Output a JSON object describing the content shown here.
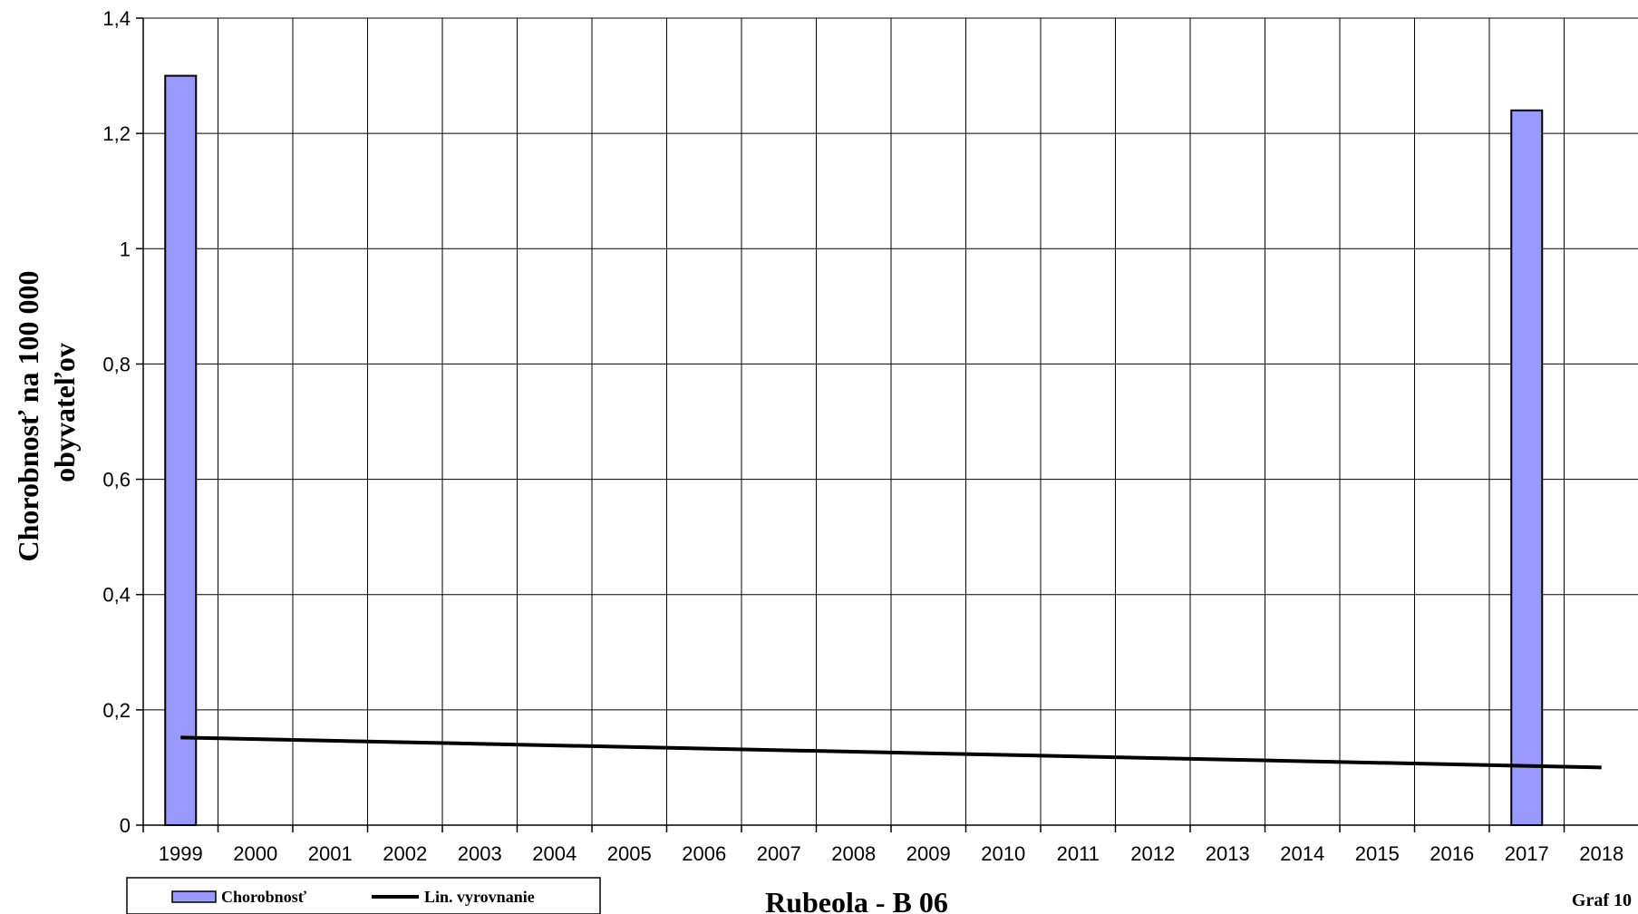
{
  "chart_data": {
    "type": "bar",
    "title": "Rubeola - B 06",
    "figure_label": "Graf 10",
    "ylabel_line1": "Chorobnosť  na 100 000",
    "ylabel_line2": "obyvateľov",
    "xlabel": "",
    "ylim": [
      0,
      1.4
    ],
    "yticks": [
      "0",
      "0,2",
      "0,4",
      "0,6",
      "0,8",
      "1",
      "1,2",
      "1,4"
    ],
    "categories": [
      "1999",
      "2000",
      "2001",
      "2002",
      "2003",
      "2004",
      "2005",
      "2006",
      "2007",
      "2008",
      "2009",
      "2010",
      "2011",
      "2012",
      "2013",
      "2014",
      "2015",
      "2016",
      "2017",
      "2018"
    ],
    "series": [
      {
        "name": "Chorobnosť",
        "kind": "bar",
        "color": "#9999ff",
        "values": [
          1.3,
          0,
          0,
          0,
          0,
          0,
          0,
          0,
          0,
          0,
          0,
          0,
          0,
          0,
          0,
          0,
          0,
          0,
          1.24,
          0
        ]
      },
      {
        "name": "Lin. vyrovnanie",
        "kind": "line",
        "color": "#000000",
        "start": 0.152,
        "end": 0.1
      }
    ],
    "grid": true,
    "legend_position": "bottom-left"
  }
}
